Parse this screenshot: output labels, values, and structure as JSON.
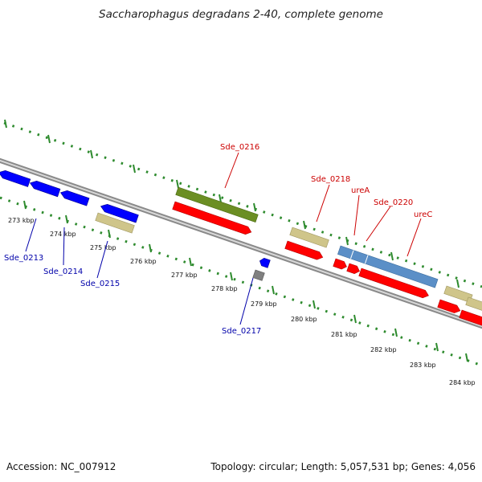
{
  "title": "Saccharophagus degradans 2-40, complete genome",
  "footer": {
    "accession": "Accession: NC_007912",
    "stats": "Topology: circular; Length: 5,057,531 bp; Genes: 4,056"
  },
  "colors": {
    "backbone": "#8a8a8a",
    "ticks": "#2e8b2e",
    "cds_forward": "#ff0000",
    "cds_reverse": "#0000ff",
    "trna": "#cfc58a",
    "rrna": "#6b8e23",
    "operon": "#5b8fc7",
    "other": "#808080",
    "label_forward": "#cc0000",
    "label_reverse": "#0000aa"
  },
  "ticks": {
    "labels": [
      "273 kbp",
      "274 kbp",
      "275 kbp",
      "276 kbp",
      "277 kbp",
      "278 kbp",
      "279 kbp",
      "280 kbp",
      "281 kbp",
      "282 kbp",
      "283 kbp",
      "284 kbp"
    ]
  },
  "genes": [
    {
      "name": "Sde_0213",
      "strand": "reverse"
    },
    {
      "name": "Sde_0214",
      "strand": "reverse"
    },
    {
      "name": "Sde_0215",
      "strand": "reverse"
    },
    {
      "name": "Sde_0216",
      "strand": "forward"
    },
    {
      "name": "Sde_0217",
      "strand": "reverse"
    },
    {
      "name": "Sde_0218",
      "strand": "forward"
    },
    {
      "name": "ureA",
      "strand": "forward"
    },
    {
      "name": "Sde_0220",
      "strand": "forward"
    },
    {
      "name": "ureC",
      "strand": "forward"
    }
  ]
}
